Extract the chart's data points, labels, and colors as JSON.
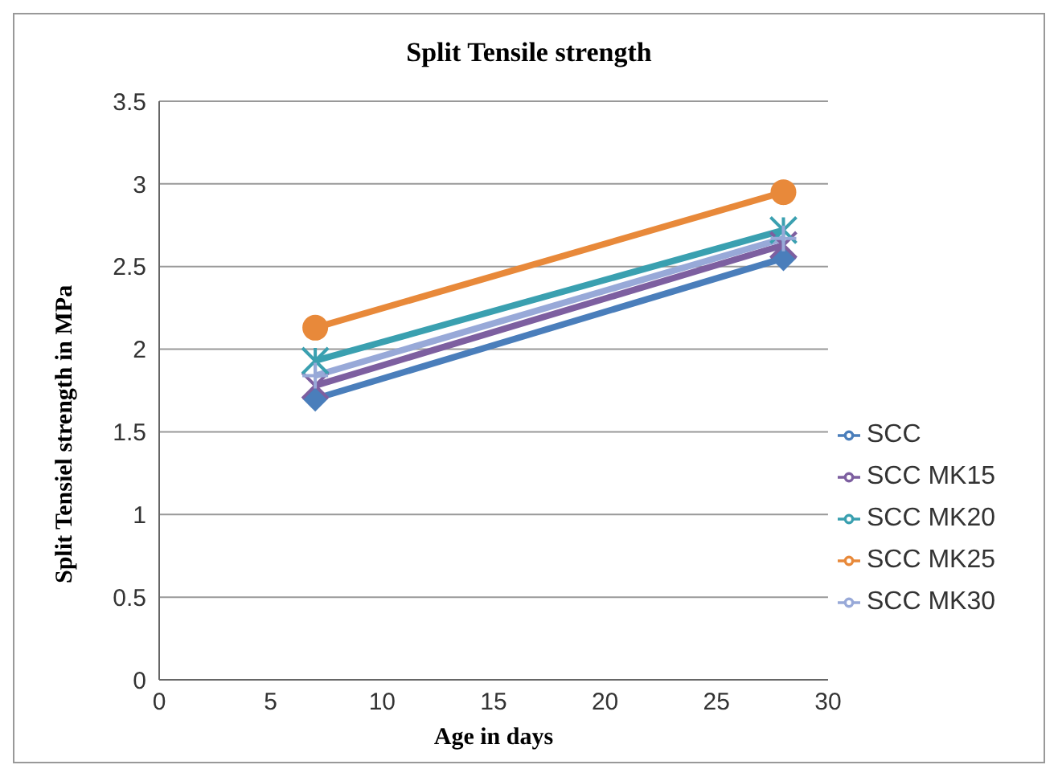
{
  "chart_data": {
    "type": "line",
    "title": "Split Tensile strength",
    "xlabel": "Age in days",
    "ylabel": "Split Tensiel strength in MPa",
    "x": [
      7,
      28
    ],
    "xlim": [
      0,
      30
    ],
    "xticks": [
      0,
      5,
      10,
      15,
      20,
      25,
      30
    ],
    "ylim": [
      0,
      3.5
    ],
    "yticks": [
      0,
      0.5,
      1,
      1.5,
      2,
      2.5,
      3,
      3.5
    ],
    "grid": "y",
    "legend": "right",
    "series": [
      {
        "name": "SCC",
        "color": "#4a7ebb",
        "marker": "diamond",
        "values": [
          1.7,
          2.55
        ]
      },
      {
        "name": "SCC MK15",
        "color": "#7d5fa0",
        "marker": "cross",
        "values": [
          1.78,
          2.63
        ]
      },
      {
        "name": "SCC MK20",
        "color": "#3aa0b0",
        "marker": "cross",
        "values": [
          1.93,
          2.72
        ]
      },
      {
        "name": "SCC MK25",
        "color": "#e8893a",
        "marker": "circle",
        "values": [
          2.13,
          2.95
        ]
      },
      {
        "name": "SCC MK30",
        "color": "#98a9d8",
        "marker": "cross",
        "values": [
          1.84,
          2.67
        ]
      }
    ]
  }
}
